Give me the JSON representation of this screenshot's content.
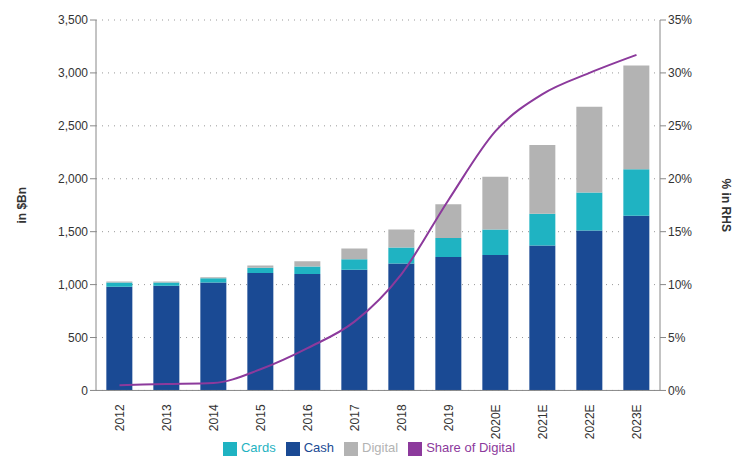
{
  "chart_data": {
    "type": "bar",
    "stacked": true,
    "grid": true,
    "legend": "bottom",
    "y_label": "in $Bn",
    "y2_label": "% in RHS",
    "categories": [
      "2012",
      "2013",
      "2014",
      "2015",
      "2016",
      "2017",
      "2018",
      "2019",
      "2020E",
      "2021E",
      "2022E",
      "2023E"
    ],
    "ylim": [
      0,
      3500
    ],
    "yticks": [
      0,
      500,
      {
        "value": 1000,
        "label": "1,000"
      },
      {
        "value": 1500,
        "label": "1,500"
      },
      {
        "value": 2000,
        "label": "2,000"
      },
      {
        "value": 2500,
        "label": "2,500"
      },
      {
        "value": 3000,
        "label": "3,000"
      },
      {
        "value": 3500,
        "label": "3,500"
      }
    ],
    "y2lim": [
      0,
      35
    ],
    "y2ticks": [
      {
        "value": 0,
        "label": "0%"
      },
      {
        "value": 5,
        "label": "5%"
      },
      {
        "value": 10,
        "label": "10%"
      },
      {
        "value": 15,
        "label": "15%"
      },
      {
        "value": 20,
        "label": "20%"
      },
      {
        "value": 25,
        "label": "25%"
      },
      {
        "value": 30,
        "label": "30%"
      },
      {
        "value": 35,
        "label": "35%"
      }
    ],
    "series": [
      {
        "name": "Cash",
        "type": "bar",
        "color": "#1a4a94",
        "values": [
          980,
          990,
          1020,
          1110,
          1100,
          1140,
          1200,
          1260,
          1280,
          1370,
          1510,
          1650
        ]
      },
      {
        "name": "Cards",
        "type": "bar",
        "color": "#1fb3c2",
        "values": [
          40,
          30,
          40,
          50,
          70,
          100,
          150,
          180,
          240,
          300,
          360,
          440
        ]
      },
      {
        "name": "Digital",
        "type": "bar",
        "color": "#b3b3b3",
        "values": [
          10,
          10,
          10,
          20,
          50,
          100,
          170,
          320,
          500,
          650,
          810,
          980
        ]
      },
      {
        "name": "Share of Digital",
        "type": "line",
        "axis": "y2",
        "color": "#8c3a9c",
        "values": [
          0.5,
          0.6,
          0.7,
          2,
          4,
          6.5,
          11,
          18,
          24.5,
          28,
          30,
          31.7
        ]
      }
    ]
  }
}
